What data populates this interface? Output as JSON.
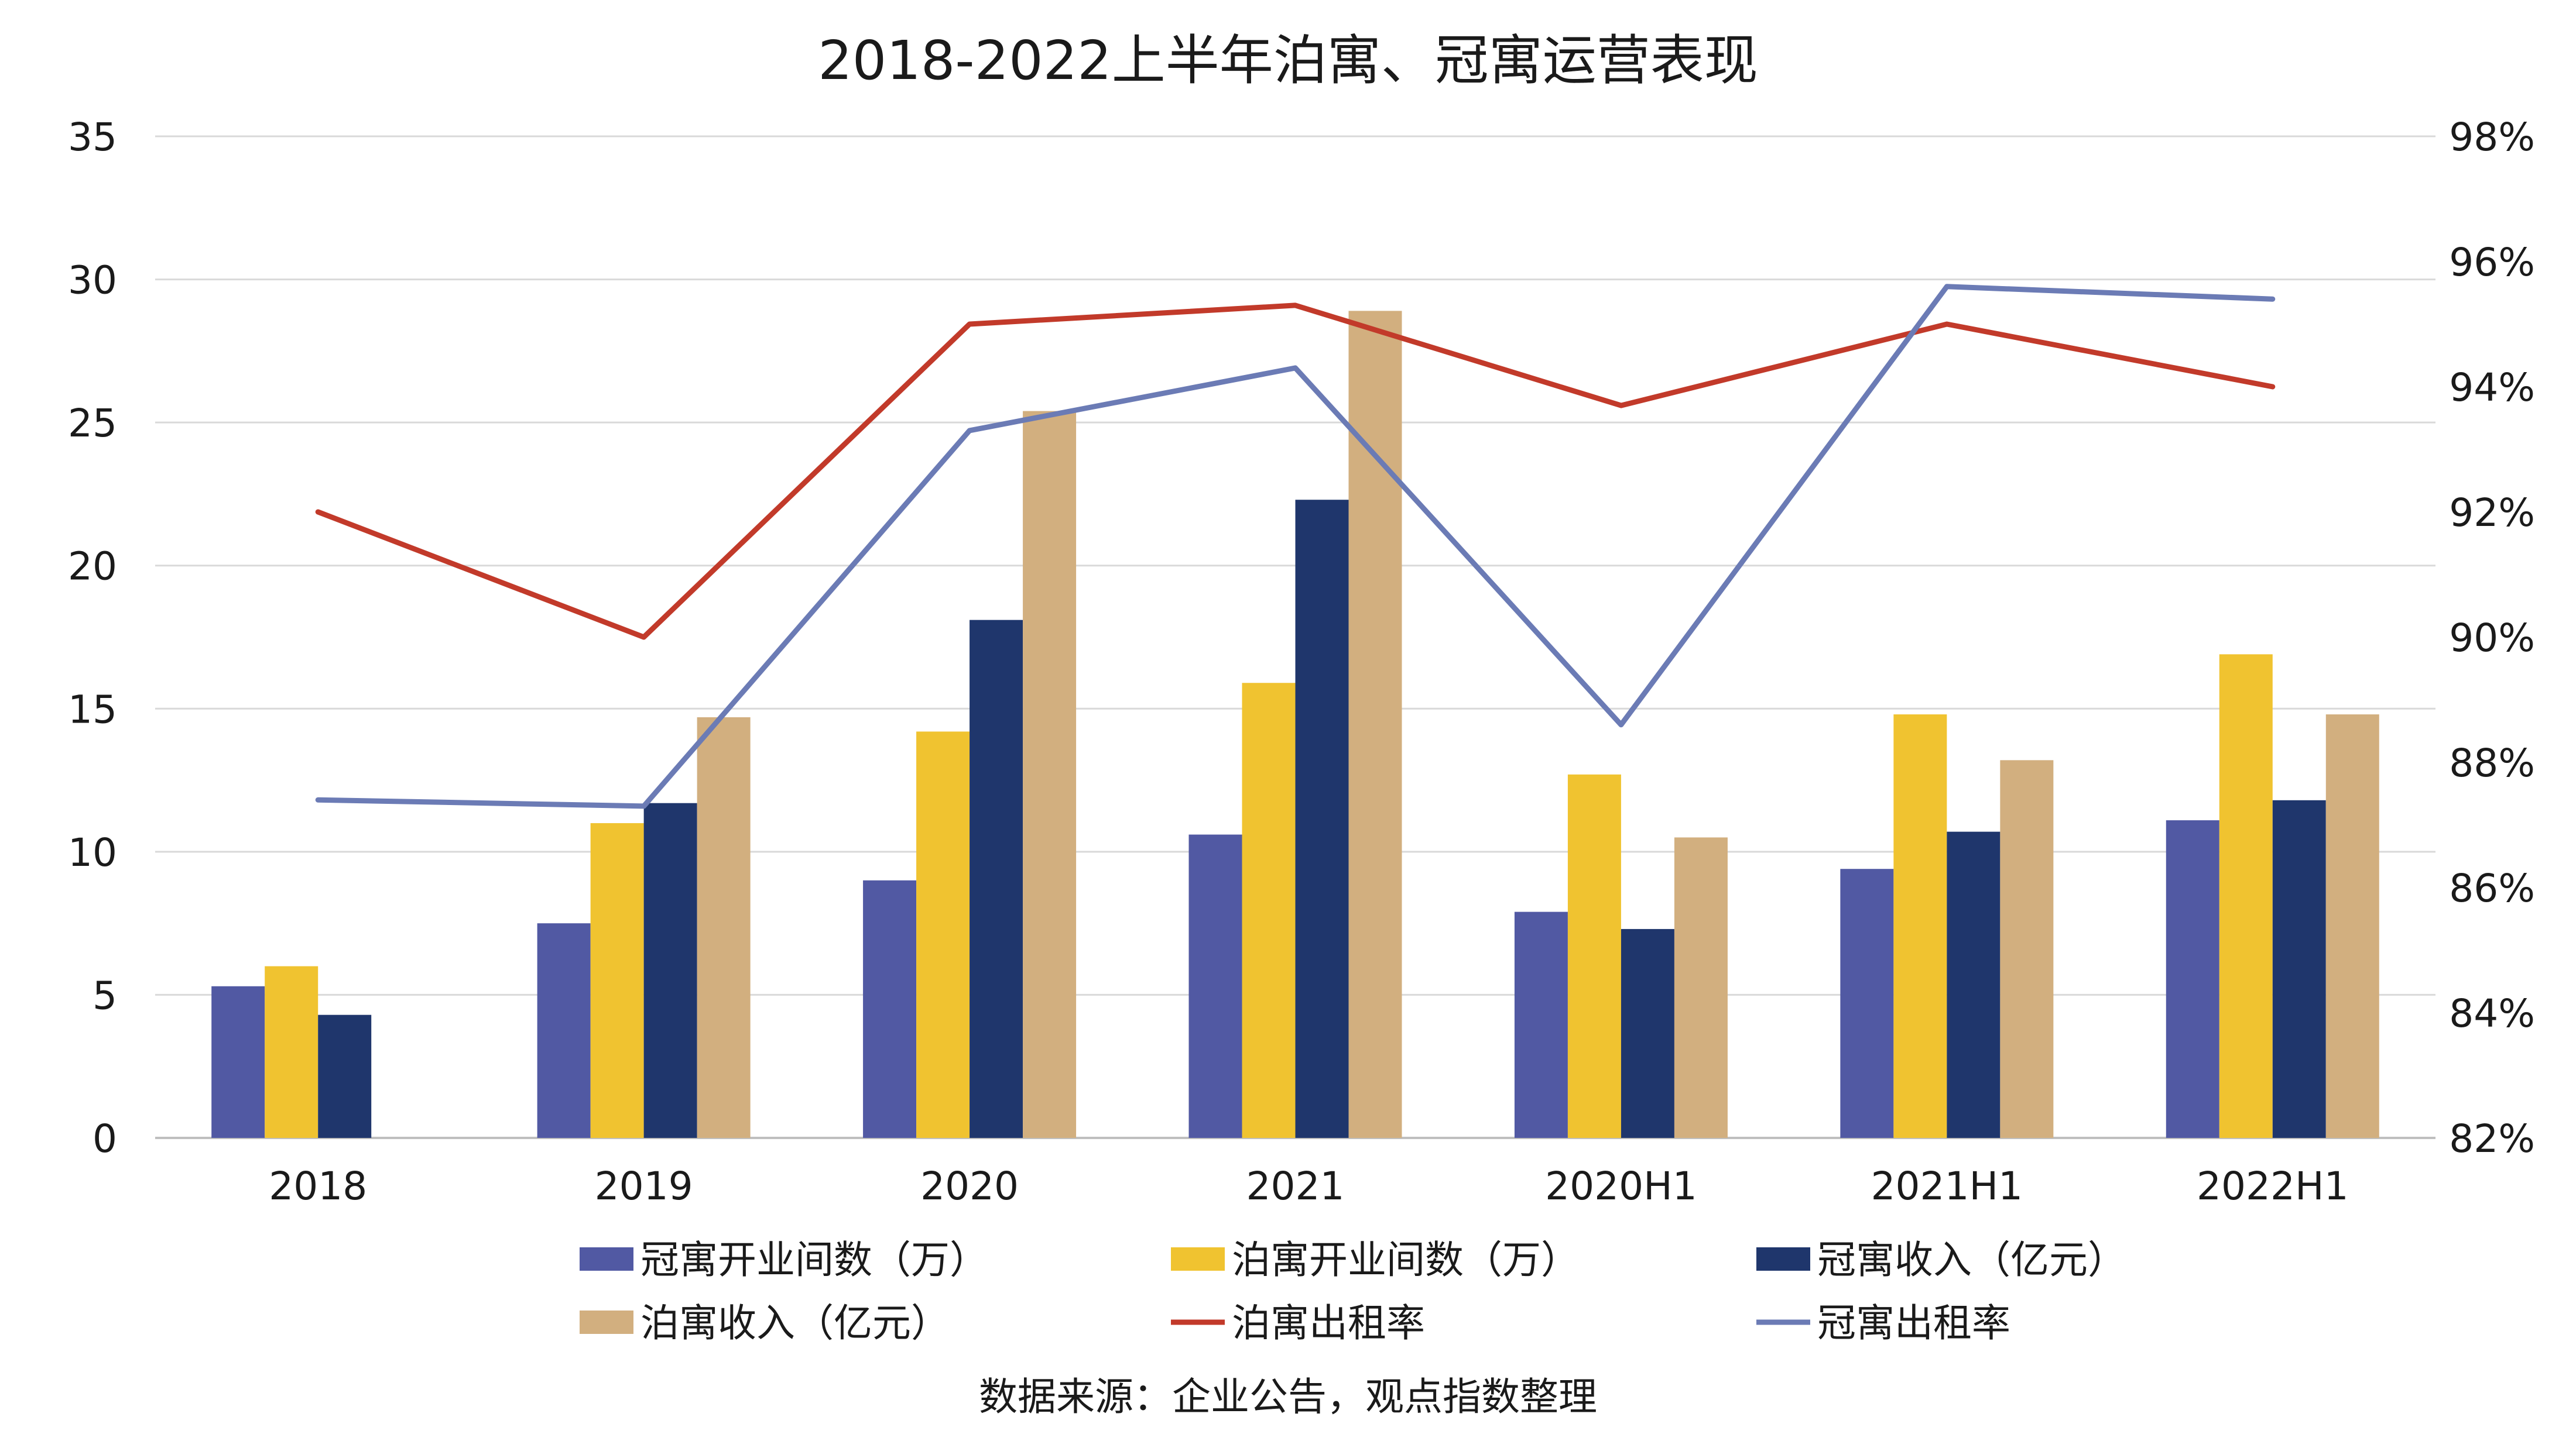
{
  "chart_data": {
    "type": "bar",
    "title": "2018-2022上半年泊寓、冠寓运营表现",
    "categories": [
      "2018",
      "2019",
      "2020",
      "2021",
      "2020H1",
      "2021H1",
      "2022H1"
    ],
    "y_left": {
      "ylim": [
        0,
        35
      ],
      "ticks": [
        "0",
        "5",
        "10",
        "15",
        "20",
        "25",
        "30",
        "35"
      ]
    },
    "y_right": {
      "ylim": [
        82,
        98
      ],
      "ticks": [
        "82%",
        "84%",
        "86%",
        "88%",
        "90%",
        "92%",
        "94%",
        "96%",
        "98%"
      ]
    },
    "series": [
      {
        "name": "冠寓开业间数（万）",
        "kind": "bar",
        "axis": "left",
        "color": "#5159a3",
        "values": [
          5.3,
          7.5,
          9.0,
          10.6,
          7.9,
          9.4,
          11.1
        ]
      },
      {
        "name": "泊寓开业间数（万）",
        "kind": "bar",
        "axis": "left",
        "color": "#f0c330",
        "values": [
          6.0,
          11.0,
          14.2,
          15.9,
          12.7,
          14.8,
          16.9
        ]
      },
      {
        "name": "冠寓收入（亿元）",
        "kind": "bar",
        "axis": "left",
        "color": "#1f366c",
        "values": [
          4.3,
          11.7,
          18.1,
          22.3,
          7.3,
          10.7,
          11.8
        ]
      },
      {
        "name": "泊寓收入（亿元）",
        "kind": "bar",
        "axis": "left",
        "color": "#d2af7f",
        "values": [
          null,
          14.7,
          25.4,
          28.9,
          10.5,
          13.2,
          14.8
        ]
      },
      {
        "name": "泊寓出租率",
        "kind": "line",
        "axis": "right",
        "color": "#c23a2a",
        "values": [
          92.0,
          90.0,
          95.0,
          95.3,
          93.7,
          95.0,
          94.0
        ]
      },
      {
        "name": "冠寓出租率",
        "kind": "line",
        "axis": "right",
        "color": "#6b7bb5",
        "values": [
          87.4,
          87.3,
          93.3,
          94.3,
          88.6,
          95.6,
          95.4
        ]
      }
    ],
    "grid": true,
    "legend": "bottom",
    "source": "数据来源：企业公告，观点指数整理"
  }
}
